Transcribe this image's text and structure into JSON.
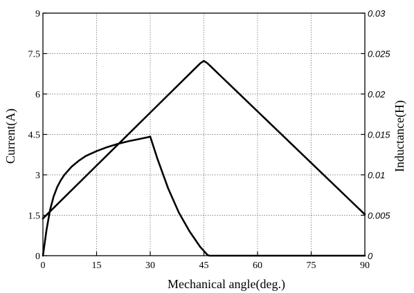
{
  "chart_data": {
    "type": "line",
    "xlabel": "Mechanical angle(deg.)",
    "ylabel": "Current(A)",
    "y2label": "Inductance(H)",
    "xlim": [
      0,
      90
    ],
    "ylim": [
      0,
      9
    ],
    "y2lim": [
      0,
      0.03
    ],
    "xticks": [
      "0",
      "15",
      "30",
      "45",
      "60",
      "75",
      "90"
    ],
    "yticks": [
      "0",
      "1.5",
      "3",
      "4.5",
      "6",
      "7.5",
      "9"
    ],
    "y2ticks": [
      "0",
      "0.005",
      "0.01",
      "0.015",
      "0.02",
      "0.025",
      "0.03"
    ],
    "grid": true,
    "series": [
      {
        "axis": "left",
        "x": [
          0,
          1,
          2,
          3,
          4,
          5,
          6,
          8,
          10,
          12,
          15,
          18,
          21,
          24,
          27,
          29.5,
          30,
          32,
          35,
          38,
          41,
          44,
          46,
          46.5,
          48,
          60,
          75,
          90
        ],
        "y": [
          0.0,
          0.95,
          1.7,
          2.2,
          2.55,
          2.8,
          3.0,
          3.3,
          3.52,
          3.7,
          3.88,
          4.03,
          4.15,
          4.25,
          4.33,
          4.4,
          4.42,
          3.6,
          2.5,
          1.6,
          0.9,
          0.32,
          0.03,
          0.0,
          0.0,
          0.0,
          0.0,
          0.0
        ]
      },
      {
        "axis": "right",
        "x": [
          0,
          44,
          45,
          46,
          90
        ],
        "y": [
          0.0046,
          0.0238,
          0.0241,
          0.0238,
          0.0051
        ]
      }
    ]
  }
}
